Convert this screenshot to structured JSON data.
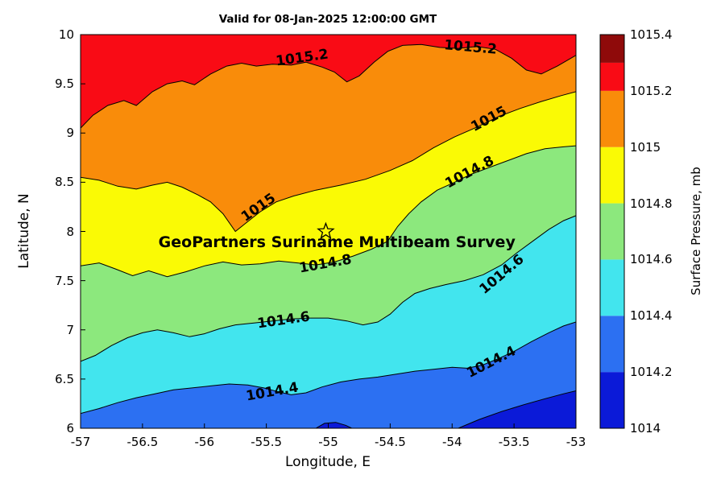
{
  "chart_data": {
    "type": "filled-contour",
    "title": "Valid for 08-Jan-2025 12:00:00 GMT",
    "xlabel": "Longitude, E",
    "ylabel": "Latitude, N",
    "xlim": [
      -57,
      -53
    ],
    "ylim": [
      6,
      10
    ],
    "zlim": [
      1014,
      1015.4
    ],
    "contour_interval": 0.2,
    "grid": false,
    "xticks": [
      -57,
      -56.5,
      -56,
      -55.5,
      -55,
      -54.5,
      -54,
      -53.5,
      -53
    ],
    "xtick_labels": [
      "-57",
      "-56.5",
      "-56",
      "-55.5",
      "-55",
      "-54.5",
      "-54",
      "-53.5",
      "-53"
    ],
    "yticks": [
      6,
      6.5,
      7,
      7.5,
      8,
      8.5,
      9,
      9.5,
      10
    ],
    "ytick_labels": [
      "6",
      "6.5",
      "7",
      "7.5",
      "8",
      "8.5",
      "9",
      "9.5",
      "10"
    ],
    "colorbar": {
      "label": "Surface Pressure, mb",
      "min": 1014,
      "max": 1015.4,
      "tick_values": [
        1014,
        1014.2,
        1014.4,
        1014.6,
        1014.8,
        1015,
        1015.2,
        1015.4
      ],
      "tick_labels": [
        "1014",
        "1014.2",
        "1014.4",
        "1014.6",
        "1014.8",
        "1015",
        "1015.2",
        "1015.4"
      ],
      "segments": [
        {
          "from": 1014,
          "to": 1014.2,
          "color": "#0b1ad8"
        },
        {
          "from": 1014.2,
          "to": 1014.4,
          "color": "#2c70f2"
        },
        {
          "from": 1014.4,
          "to": 1014.6,
          "color": "#42e5ee"
        },
        {
          "from": 1014.6,
          "to": 1014.8,
          "color": "#8ce87d"
        },
        {
          "from": 1014.8,
          "to": 1015,
          "color": "#fafa05"
        },
        {
          "from": 1015,
          "to": 1015.2,
          "color": "#f98c0a"
        },
        {
          "from": 1015.2,
          "to": 1015.3,
          "color": "#f90b15"
        },
        {
          "from": 1015.3,
          "to": 1015.4,
          "color": "#8f0a0a"
        }
      ]
    },
    "background_fill": {
      "level_above": 1015.2,
      "color": "#f90b15"
    },
    "contours": [
      {
        "level": 1015.2,
        "fill_below": "#f98c0a",
        "points": [
          [
            -57.0,
            9.05
          ],
          [
            -56.9,
            9.18
          ],
          [
            -56.78,
            9.28
          ],
          [
            -56.65,
            9.33
          ],
          [
            -56.55,
            9.28
          ],
          [
            -56.42,
            9.42
          ],
          [
            -56.3,
            9.5
          ],
          [
            -56.18,
            9.53
          ],
          [
            -56.08,
            9.49
          ],
          [
            -55.95,
            9.6
          ],
          [
            -55.82,
            9.68
          ],
          [
            -55.7,
            9.71
          ],
          [
            -55.58,
            9.68
          ],
          [
            -55.45,
            9.7
          ],
          [
            -55.3,
            9.69
          ],
          [
            -55.18,
            9.72
          ],
          [
            -55.05,
            9.67
          ],
          [
            -54.95,
            9.62
          ],
          [
            -54.85,
            9.52
          ],
          [
            -54.75,
            9.58
          ],
          [
            -54.63,
            9.72
          ],
          [
            -54.52,
            9.83
          ],
          [
            -54.4,
            9.89
          ],
          [
            -54.25,
            9.9
          ],
          [
            -54.1,
            9.87
          ],
          [
            -53.95,
            9.86
          ],
          [
            -53.8,
            9.88
          ],
          [
            -53.65,
            9.85
          ],
          [
            -53.52,
            9.76
          ],
          [
            -53.4,
            9.64
          ],
          [
            -53.28,
            9.6
          ],
          [
            -53.15,
            9.68
          ],
          [
            -53.0,
            9.79
          ]
        ]
      },
      {
        "level": 1015,
        "fill_below": "#fafa05",
        "points": [
          [
            -57.0,
            8.55
          ],
          [
            -56.85,
            8.52
          ],
          [
            -56.7,
            8.46
          ],
          [
            -56.55,
            8.43
          ],
          [
            -56.42,
            8.47
          ],
          [
            -56.3,
            8.5
          ],
          [
            -56.18,
            8.45
          ],
          [
            -56.05,
            8.37
          ],
          [
            -55.95,
            8.3
          ],
          [
            -55.85,
            8.18
          ],
          [
            -55.75,
            8.0
          ],
          [
            -55.66,
            8.09
          ],
          [
            -55.55,
            8.2
          ],
          [
            -55.42,
            8.3
          ],
          [
            -55.28,
            8.36
          ],
          [
            -55.1,
            8.42
          ],
          [
            -54.9,
            8.47
          ],
          [
            -54.7,
            8.53
          ],
          [
            -54.5,
            8.62
          ],
          [
            -54.32,
            8.72
          ],
          [
            -54.15,
            8.85
          ],
          [
            -53.98,
            8.96
          ],
          [
            -53.8,
            9.06
          ],
          [
            -53.62,
            9.17
          ],
          [
            -53.45,
            9.25
          ],
          [
            -53.28,
            9.32
          ],
          [
            -53.12,
            9.38
          ],
          [
            -53.0,
            9.42
          ]
        ]
      },
      {
        "level": 1014.8,
        "fill_below": "#8ce87d",
        "points": [
          [
            -57.0,
            7.65
          ],
          [
            -56.85,
            7.68
          ],
          [
            -56.72,
            7.62
          ],
          [
            -56.58,
            7.55
          ],
          [
            -56.45,
            7.6
          ],
          [
            -56.3,
            7.54
          ],
          [
            -56.15,
            7.59
          ],
          [
            -56.0,
            7.65
          ],
          [
            -55.85,
            7.69
          ],
          [
            -55.7,
            7.66
          ],
          [
            -55.55,
            7.67
          ],
          [
            -55.4,
            7.7
          ],
          [
            -55.25,
            7.68
          ],
          [
            -55.1,
            7.66
          ],
          [
            -54.95,
            7.69
          ],
          [
            -54.8,
            7.75
          ],
          [
            -54.65,
            7.82
          ],
          [
            -54.52,
            7.9
          ],
          [
            -54.44,
            8.05
          ],
          [
            -54.35,
            8.18
          ],
          [
            -54.25,
            8.3
          ],
          [
            -54.12,
            8.42
          ],
          [
            -53.98,
            8.5
          ],
          [
            -53.85,
            8.58
          ],
          [
            -53.7,
            8.65
          ],
          [
            -53.55,
            8.72
          ],
          [
            -53.4,
            8.79
          ],
          [
            -53.25,
            8.84
          ],
          [
            -53.1,
            8.86
          ],
          [
            -53.0,
            8.87
          ]
        ]
      },
      {
        "level": 1014.6,
        "fill_below": "#42e5ee",
        "points": [
          [
            -57.0,
            6.68
          ],
          [
            -56.88,
            6.74
          ],
          [
            -56.75,
            6.84
          ],
          [
            -56.62,
            6.92
          ],
          [
            -56.5,
            6.97
          ],
          [
            -56.38,
            7.0
          ],
          [
            -56.25,
            6.97
          ],
          [
            -56.12,
            6.93
          ],
          [
            -56.0,
            6.96
          ],
          [
            -55.88,
            7.01
          ],
          [
            -55.75,
            7.05
          ],
          [
            -55.6,
            7.07
          ],
          [
            -55.45,
            7.09
          ],
          [
            -55.3,
            7.11
          ],
          [
            -55.15,
            7.12
          ],
          [
            -55.0,
            7.12
          ],
          [
            -54.85,
            7.09
          ],
          [
            -54.72,
            7.05
          ],
          [
            -54.6,
            7.08
          ],
          [
            -54.5,
            7.16
          ],
          [
            -54.4,
            7.28
          ],
          [
            -54.3,
            7.37
          ],
          [
            -54.18,
            7.42
          ],
          [
            -54.05,
            7.46
          ],
          [
            -53.9,
            7.5
          ],
          [
            -53.75,
            7.56
          ],
          [
            -53.6,
            7.66
          ],
          [
            -53.48,
            7.78
          ],
          [
            -53.35,
            7.9
          ],
          [
            -53.22,
            8.02
          ],
          [
            -53.1,
            8.11
          ],
          [
            -53.0,
            8.16
          ]
        ]
      },
      {
        "level": 1014.4,
        "fill_below": "#2c70f2",
        "points": [
          [
            -57.0,
            6.15
          ],
          [
            -56.85,
            6.2
          ],
          [
            -56.7,
            6.26
          ],
          [
            -56.55,
            6.31
          ],
          [
            -56.4,
            6.35
          ],
          [
            -56.25,
            6.39
          ],
          [
            -56.1,
            6.41
          ],
          [
            -55.95,
            6.43
          ],
          [
            -55.8,
            6.45
          ],
          [
            -55.65,
            6.44
          ],
          [
            -55.52,
            6.41
          ],
          [
            -55.4,
            6.37
          ],
          [
            -55.3,
            6.34
          ],
          [
            -55.18,
            6.36
          ],
          [
            -55.05,
            6.42
          ],
          [
            -54.9,
            6.47
          ],
          [
            -54.75,
            6.5
          ],
          [
            -54.6,
            6.52
          ],
          [
            -54.45,
            6.55
          ],
          [
            -54.3,
            6.58
          ],
          [
            -54.15,
            6.6
          ],
          [
            -54.0,
            6.62
          ],
          [
            -53.88,
            6.61
          ],
          [
            -53.76,
            6.64
          ],
          [
            -53.64,
            6.7
          ],
          [
            -53.5,
            6.78
          ],
          [
            -53.36,
            6.88
          ],
          [
            -53.22,
            6.97
          ],
          [
            -53.1,
            7.04
          ],
          [
            -53.0,
            7.08
          ]
        ]
      }
    ],
    "closed_regions": [
      {
        "level": 1014.2,
        "color": "#0b1ad8",
        "edge": "bottom-right",
        "points": [
          [
            -53.95,
            6.0
          ],
          [
            -53.78,
            6.09
          ],
          [
            -53.6,
            6.17
          ],
          [
            -53.42,
            6.24
          ],
          [
            -53.25,
            6.3
          ],
          [
            -53.1,
            6.35
          ],
          [
            -53.0,
            6.38
          ]
        ]
      },
      {
        "level": 1014.2,
        "color": "#0b1ad8",
        "edge": "bottom",
        "points": [
          [
            -55.1,
            6.0
          ],
          [
            -55.03,
            6.05
          ],
          [
            -54.94,
            6.06
          ],
          [
            -54.86,
            6.03
          ],
          [
            -54.81,
            6.0
          ]
        ]
      }
    ],
    "contour_labels": [
      {
        "text": "1015.2",
        "lon": -55.21,
        "lat": 9.76,
        "rotation": -8
      },
      {
        "text": "1015.2",
        "lon": -53.85,
        "lat": 9.87,
        "rotation": 5
      },
      {
        "text": "1015",
        "lon": -53.7,
        "lat": 9.14,
        "rotation": -28
      },
      {
        "text": "1015",
        "lon": -55.56,
        "lat": 8.24,
        "rotation": -35
      },
      {
        "text": "1014.8",
        "lon": -53.86,
        "lat": 8.6,
        "rotation": -28
      },
      {
        "text": "1014.8",
        "lon": -55.02,
        "lat": 7.67,
        "rotation": -10
      },
      {
        "text": "1014.6",
        "lon": -53.6,
        "lat": 7.56,
        "rotation": -40
      },
      {
        "text": "1014.6",
        "lon": -55.36,
        "lat": 7.1,
        "rotation": -8
      },
      {
        "text": "1014.4",
        "lon": -53.68,
        "lat": 6.67,
        "rotation": -27
      },
      {
        "text": "1014.4",
        "lon": -55.45,
        "lat": 6.37,
        "rotation": -10
      }
    ],
    "annotation": {
      "text": "GeoPartners Suriname Multibeam Survey",
      "lon": -54.93,
      "lat": 7.89,
      "marker": "pentagram-star",
      "marker_lon": -55.02,
      "marker_lat": 8.0
    }
  }
}
